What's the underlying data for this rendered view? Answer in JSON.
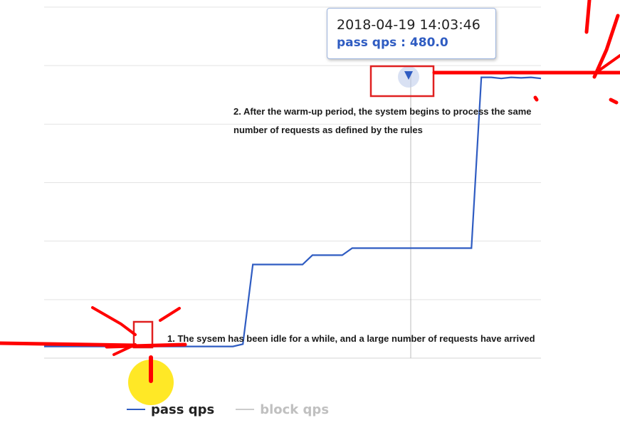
{
  "tooltip": {
    "time": "2018-04-19 14:03:46",
    "series_label": "pass qps",
    "separator": " : ",
    "value": "480.0"
  },
  "annotations": {
    "warmup_done": "2. After the warm-up period, the system begins to process the same number of requests as defined by the rules",
    "idle_start": "1. The sysem has been idle for a while, and a large number of requests have arrived"
  },
  "legend": [
    {
      "label": "pass qps",
      "color": "#2f5cc2",
      "text_color": "#222222"
    },
    {
      "label": "block qps",
      "color": "#cccccc",
      "text_color": "#c0c0c0"
    }
  ],
  "colors": {
    "pass_line": "#2f5cc2",
    "grid": "#e3e3e3",
    "crosshair": "#bbbbbb",
    "highlight_box": "#e02020",
    "marker_red": "#ff0000",
    "cursor_yellow": "#ffe400"
  },
  "chart_data": {
    "type": "line",
    "title": "",
    "xlabel": "",
    "ylabel": "",
    "ylim": [
      0,
      600
    ],
    "grid": true,
    "legend_position": "bottom",
    "series": [
      {
        "name": "pass qps",
        "x": [
          0,
          1,
          2,
          3,
          4,
          5,
          6,
          7,
          8,
          9,
          10,
          11,
          12,
          13,
          14,
          15,
          16,
          17,
          18,
          19,
          20,
          21,
          22,
          23,
          24,
          25,
          26,
          27,
          28,
          29,
          30,
          31,
          32,
          33,
          34,
          35,
          36,
          37,
          38,
          39,
          40,
          41,
          42,
          43,
          44,
          45,
          46,
          47,
          48,
          49,
          50
        ],
        "values": [
          20,
          20,
          20,
          20,
          20,
          20,
          20,
          20,
          20,
          20,
          20,
          20,
          20,
          20,
          20,
          20,
          20,
          20,
          20,
          20,
          24,
          160,
          160,
          160,
          160,
          160,
          160,
          176,
          176,
          176,
          176,
          188,
          188,
          188,
          188,
          188,
          188,
          188,
          188,
          188,
          188,
          188,
          188,
          188,
          480,
          480,
          478,
          480,
          479,
          480,
          478
        ]
      },
      {
        "name": "block qps",
        "x": [],
        "values": []
      }
    ]
  }
}
